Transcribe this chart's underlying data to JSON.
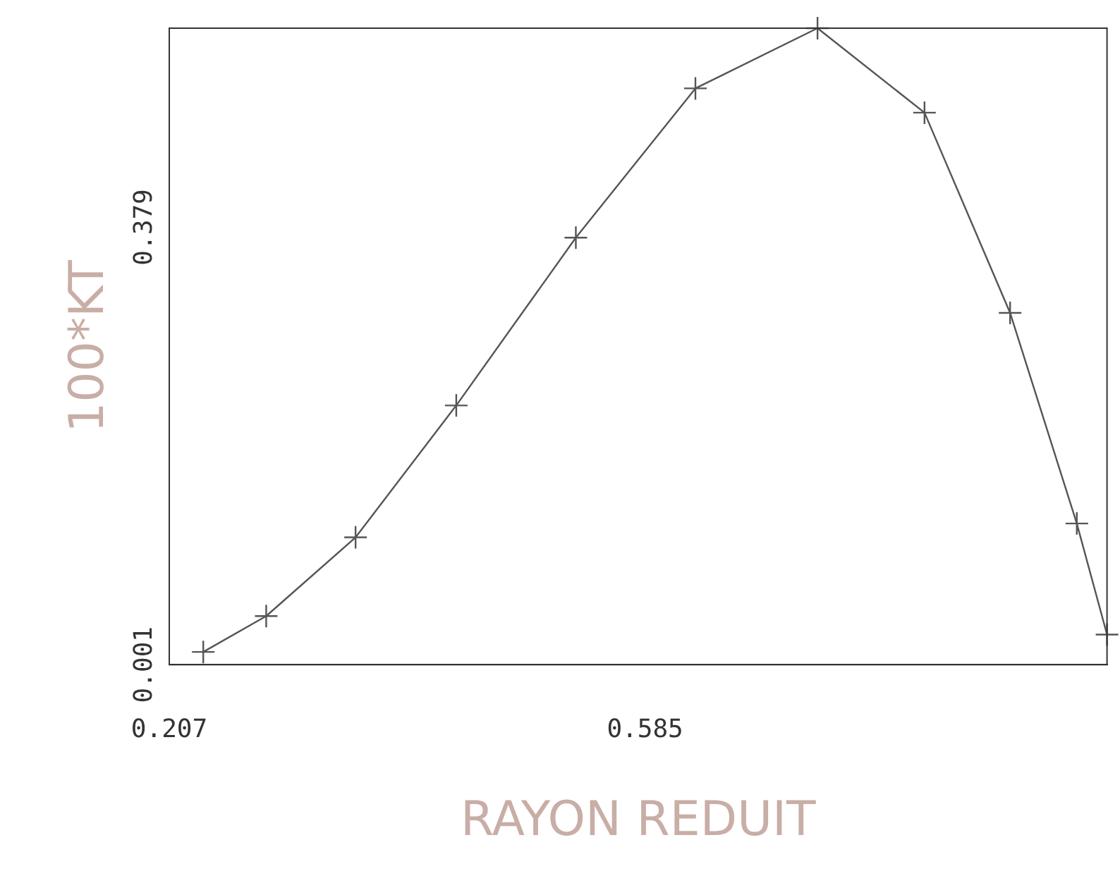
{
  "chart_data": {
    "type": "line",
    "xlabel": "RAYON REDUIT",
    "ylabel": "100*KT",
    "x": [
      0.234,
      0.284,
      0.355,
      0.435,
      0.53,
      0.625,
      0.722,
      0.807,
      0.875,
      0.928,
      0.952
    ],
    "series": [
      {
        "color": "#555555",
        "values": [
          0.012,
          0.043,
          0.111,
          0.225,
          0.37,
          0.499,
          0.551,
          0.478,
          0.305,
          0.123,
          0.027
        ]
      }
    ],
    "xlim": [
      0.207,
      0.952
    ],
    "xticks": [
      0.207,
      0.585
    ],
    "ylim": [
      0.001,
      0.551
    ],
    "yticks": [
      0.001,
      0.379
    ],
    "grid": false,
    "legend": false,
    "marker": "cross",
    "line_style": "solid"
  }
}
